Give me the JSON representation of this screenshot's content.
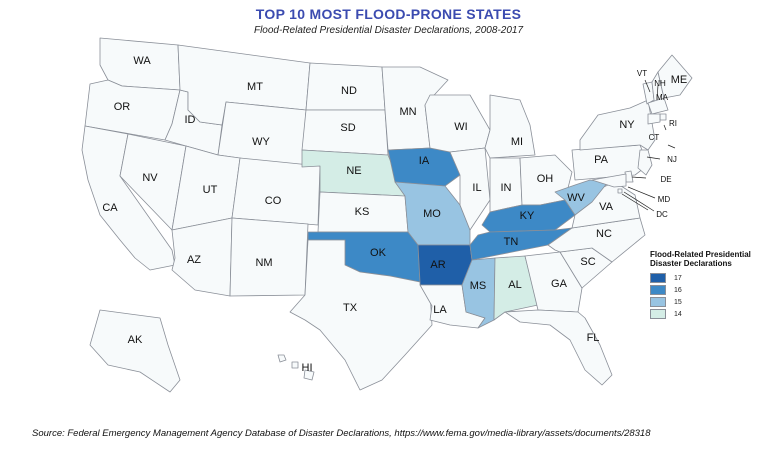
{
  "header": {
    "title": "TOP 10 MOST FLOOD-PRONE STATES",
    "subtitle": "Flood-Related Presidential Disaster Declarations, 2008-2017"
  },
  "colors": {
    "base": "#f7fafb",
    "v17": "#1f5fa8",
    "v16": "#3d89c6",
    "v15": "#98c4e2",
    "v14": "#d4ede6"
  },
  "states": [
    {
      "abbr": "WA",
      "value": null
    },
    {
      "abbr": "OR",
      "value": null
    },
    {
      "abbr": "CA",
      "value": null
    },
    {
      "abbr": "NV",
      "value": null
    },
    {
      "abbr": "ID",
      "value": null
    },
    {
      "abbr": "MT",
      "value": null
    },
    {
      "abbr": "WY",
      "value": null
    },
    {
      "abbr": "UT",
      "value": null
    },
    {
      "abbr": "AZ",
      "value": null
    },
    {
      "abbr": "CO",
      "value": null
    },
    {
      "abbr": "NM",
      "value": null
    },
    {
      "abbr": "ND",
      "value": null
    },
    {
      "abbr": "SD",
      "value": null
    },
    {
      "abbr": "NE",
      "value": 14
    },
    {
      "abbr": "KS",
      "value": null
    },
    {
      "abbr": "OK",
      "value": 16
    },
    {
      "abbr": "TX",
      "value": null
    },
    {
      "abbr": "MN",
      "value": null
    },
    {
      "abbr": "IA",
      "value": 16
    },
    {
      "abbr": "MO",
      "value": 15
    },
    {
      "abbr": "AR",
      "value": 17
    },
    {
      "abbr": "LA",
      "value": null
    },
    {
      "abbr": "WI",
      "value": null
    },
    {
      "abbr": "IL",
      "value": null
    },
    {
      "abbr": "MI",
      "value": null
    },
    {
      "abbr": "IN",
      "value": null
    },
    {
      "abbr": "OH",
      "value": null
    },
    {
      "abbr": "KY",
      "value": 16
    },
    {
      "abbr": "TN",
      "value": 16
    },
    {
      "abbr": "MS",
      "value": 15
    },
    {
      "abbr": "AL",
      "value": 14
    },
    {
      "abbr": "GA",
      "value": null
    },
    {
      "abbr": "FL",
      "value": null
    },
    {
      "abbr": "SC",
      "value": null
    },
    {
      "abbr": "NC",
      "value": null
    },
    {
      "abbr": "VA",
      "value": null
    },
    {
      "abbr": "WV",
      "value": 15
    },
    {
      "abbr": "PA",
      "value": null
    },
    {
      "abbr": "NY",
      "value": null
    },
    {
      "abbr": "VT",
      "value": null
    },
    {
      "abbr": "NH",
      "value": null
    },
    {
      "abbr": "ME",
      "value": null
    },
    {
      "abbr": "MA",
      "value": null
    },
    {
      "abbr": "RI",
      "value": null
    },
    {
      "abbr": "CT",
      "value": null
    },
    {
      "abbr": "NJ",
      "value": null
    },
    {
      "abbr": "DE",
      "value": null
    },
    {
      "abbr": "MD",
      "value": null
    },
    {
      "abbr": "DC",
      "value": null
    },
    {
      "abbr": "AK",
      "value": null
    },
    {
      "abbr": "HI",
      "value": null
    }
  ],
  "legend": {
    "title": "Flood-Related Presidential Disaster Declarations",
    "items": [
      {
        "value": "17",
        "color": "#1f5fa8"
      },
      {
        "value": "16",
        "color": "#3d89c6"
      },
      {
        "value": "15",
        "color": "#98c4e2"
      },
      {
        "value": "14",
        "color": "#d4ede6"
      }
    ]
  },
  "source": "Source: Federal Emergency Management Agency Database of Disaster Declarations, https://www.fema.gov/media-library/assets/documents/28318"
}
